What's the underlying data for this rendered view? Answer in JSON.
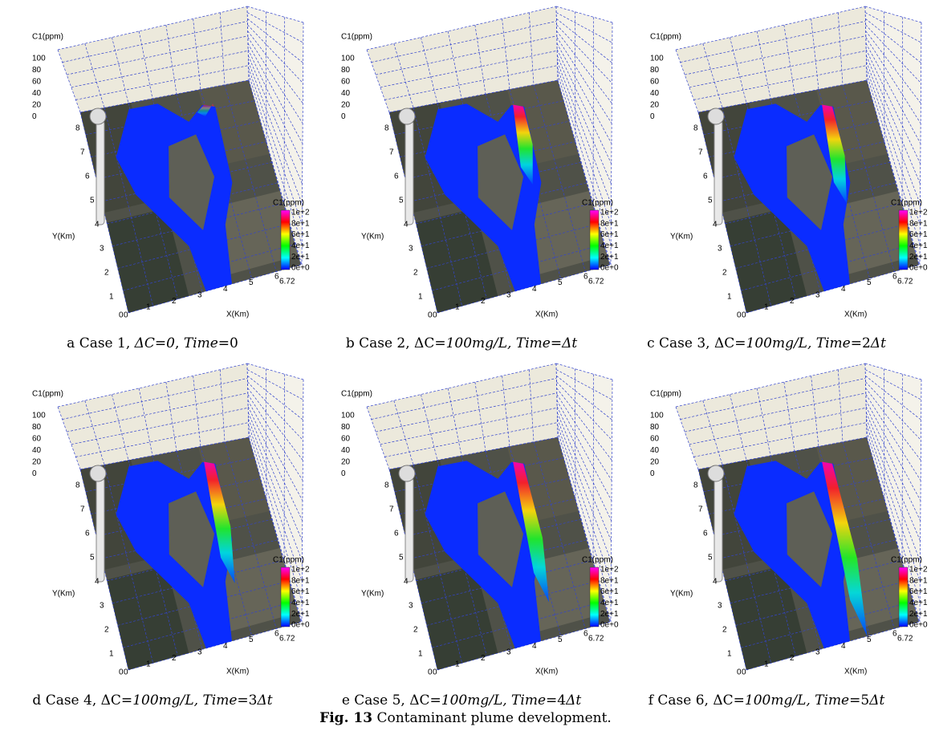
{
  "axes": {
    "z_title": "C1(ppm)",
    "z_ticks": [
      "100",
      "80",
      "60",
      "40",
      "20",
      "0"
    ],
    "y_title": "Y(Km)",
    "y_ticks": [
      "8",
      "7",
      "6",
      "5",
      "4",
      "3",
      "2",
      "1",
      "0"
    ],
    "x_title": "X(Km)",
    "x_ticks": [
      "0",
      "1",
      "2",
      "3",
      "4",
      "5",
      "6",
      "6.72"
    ],
    "colorbar_title": "C1(ppm)",
    "colorbar_ticks": [
      "1e+2",
      "8e+1",
      "6e+1",
      "4e+1",
      "2e+1",
      "0e+0"
    ]
  },
  "panels": [
    {
      "caption": [
        {
          "text": "a Case 1, "
        },
        {
          "text": "ΔC=0",
          "italic": true
        },
        {
          "text": ", "
        },
        {
          "text": "Time",
          "italic": true
        },
        {
          "text": "=0"
        }
      ]
    },
    {
      "caption": [
        {
          "text": "b Case 2, ΔC="
        },
        {
          "text": "100mg/L, Time",
          "italic": true
        },
        {
          "text": "="
        },
        {
          "text": "Δt",
          "italic": true
        }
      ]
    },
    {
      "caption": [
        {
          "text": "c Case 3, ΔC="
        },
        {
          "text": "100mg/L, Time",
          "italic": true
        },
        {
          "text": "=2"
        },
        {
          "text": "Δt",
          "italic": true
        }
      ]
    },
    {
      "caption": [
        {
          "text": "d Case 4, ΔC="
        },
        {
          "text": "100mg/L, Time",
          "italic": true
        },
        {
          "text": "=3"
        },
        {
          "text": "Δt",
          "italic": true
        }
      ]
    },
    {
      "caption": [
        {
          "text": "e Case 5, ΔC="
        },
        {
          "text": "100mg/L, Time",
          "italic": true
        },
        {
          "text": "=4"
        },
        {
          "text": "Δt",
          "italic": true
        }
      ]
    },
    {
      "caption": [
        {
          "text": "f Case 6, ΔC="
        },
        {
          "text": "100mg/L, Time",
          "italic": true
        },
        {
          "text": "=5"
        },
        {
          "text": "Δt",
          "italic": true
        }
      ]
    }
  ],
  "figure_caption": {
    "label": "Fig. 13",
    "text": "Contaminant plume development."
  }
}
